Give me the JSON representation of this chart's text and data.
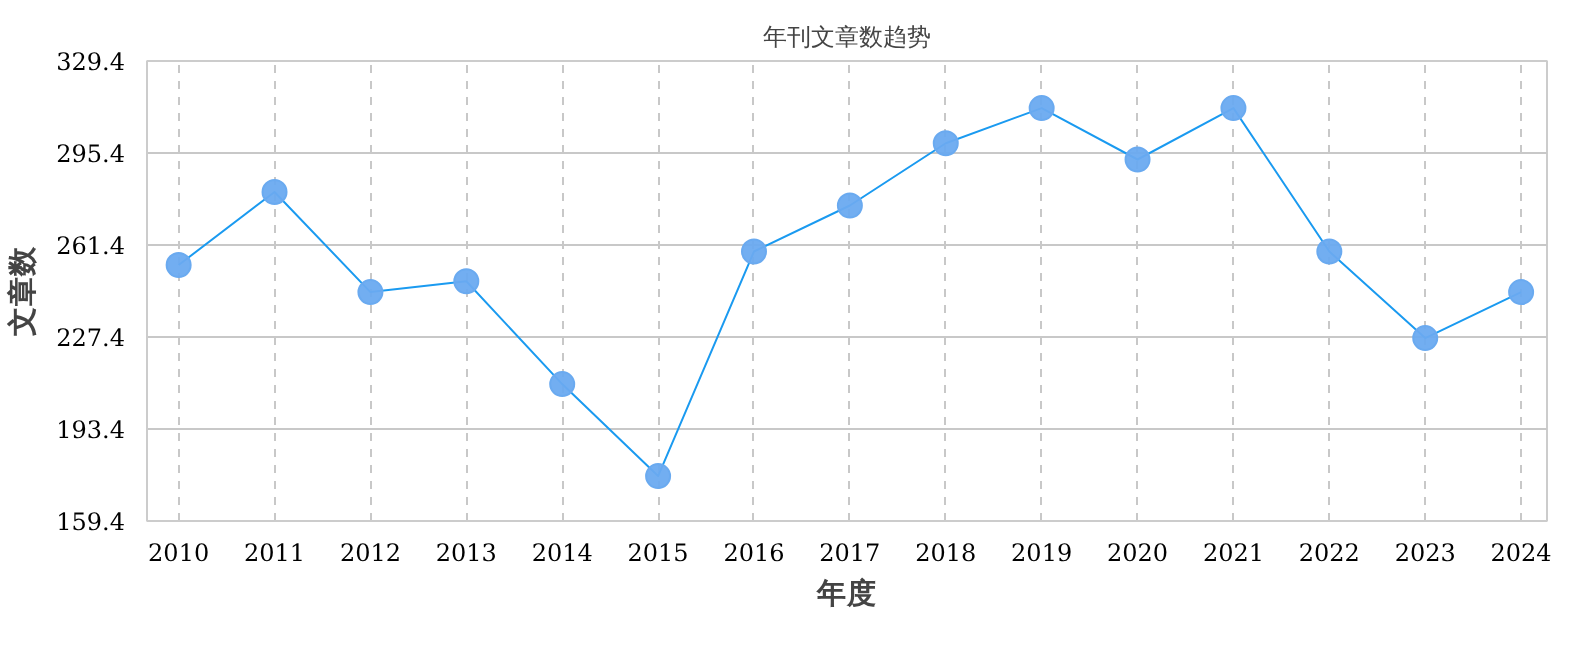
{
  "chart_data": {
    "type": "line",
    "title": "年刊文章数趋势",
    "xlabel": "年度",
    "ylabel": "文章数",
    "categories": [
      "2010",
      "2011",
      "2012",
      "2013",
      "2014",
      "2015",
      "2016",
      "2017",
      "2018",
      "2019",
      "2020",
      "2021",
      "2022",
      "2023",
      "2024"
    ],
    "series": [
      {
        "color": "#1a9af0",
        "values": [
          254,
          281,
          244,
          248,
          210,
          176,
          259,
          276,
          299,
          312,
          293,
          312,
          259,
          227,
          244
        ]
      }
    ],
    "ylim": [
      159.4,
      329.4
    ],
    "yticks": [
      159.4,
      193.4,
      227.4,
      261.4,
      295.4,
      329.4
    ],
    "grid": true,
    "marker": "circle",
    "line_style": "solid"
  }
}
